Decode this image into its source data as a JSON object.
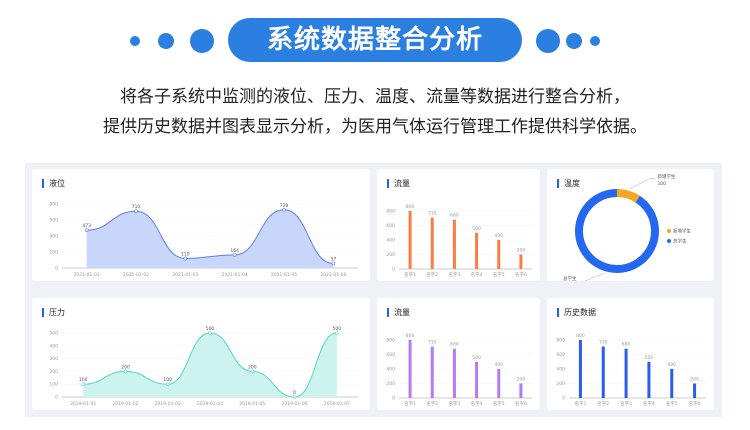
{
  "header": {
    "title": "系统数据整合分析",
    "desc_line1": "将各子系统中监测的液位、压力、温度、流量等数据进行整合分析，",
    "desc_line2": "提供历史数据并图表显示分析，为医用气体运行管理工作提供科学依据。",
    "accent": "#2a7fe0"
  },
  "chart_data": [
    {
      "id": "level",
      "type": "area",
      "title": "液位",
      "categories": [
        "2021-01-01",
        "2021-01-02",
        "2021-01-03",
        "2021-01-04",
        "2021-01-05",
        "2021-01-06"
      ],
      "values": [
        473,
        710,
        119,
        164,
        728,
        57
      ],
      "ylim": [
        0,
        800
      ],
      "yticks": [
        0,
        200,
        400,
        600,
        800
      ],
      "color": "#5b7ff0",
      "fill": "#c9d6fb"
    },
    {
      "id": "flow1",
      "type": "bar",
      "title": "流量",
      "categories": [
        "名字1",
        "名字2",
        "名字3",
        "名字4",
        "名字5",
        "名字6"
      ],
      "values": [
        800,
        710,
        680,
        500,
        400,
        200
      ],
      "ylim": [
        0,
        800
      ],
      "yticks": [
        0,
        200,
        400,
        600,
        800
      ],
      "color": "#ff7a45"
    },
    {
      "id": "temp",
      "type": "pie",
      "title": "温度",
      "series": [
        {
          "name": "新增学生",
          "value": 100,
          "color": "#f5a623"
        },
        {
          "name": "总学生",
          "value": 995,
          "color": "#2468f2"
        }
      ]
    },
    {
      "id": "pressure",
      "type": "area",
      "title": "压力",
      "categories": [
        "2019-01-01",
        "2019-01-02",
        "2019-01-03",
        "2019-01-04",
        "2019-01-05",
        "2019-01-06",
        "2019-01-07"
      ],
      "values": [
        100,
        200,
        100,
        500,
        200,
        0,
        500
      ],
      "ylim": [
        0,
        500
      ],
      "yticks": [
        0,
        100,
        200,
        300,
        400,
        500
      ],
      "color": "#4fd8c4",
      "fill": "#cdf3ee"
    },
    {
      "id": "flow2",
      "type": "bar",
      "title": "流量",
      "categories": [
        "名字1",
        "名字2",
        "名字3",
        "名字4",
        "名字5",
        "名字6"
      ],
      "values": [
        800,
        710,
        680,
        500,
        400,
        200
      ],
      "ylim": [
        0,
        800
      ],
      "yticks": [
        0,
        200,
        400,
        600,
        800
      ],
      "color": "#b57af5"
    },
    {
      "id": "history",
      "type": "bar",
      "title": "历史数据",
      "categories": [
        "名字1",
        "名字2",
        "名字3",
        "名字4",
        "名字5",
        "名字6"
      ],
      "values": [
        800,
        710,
        680,
        500,
        400,
        200
      ],
      "ylim": [
        0,
        800
      ],
      "yticks": [
        0,
        200,
        400,
        600,
        800
      ],
      "color": "#2a5cf0"
    }
  ]
}
